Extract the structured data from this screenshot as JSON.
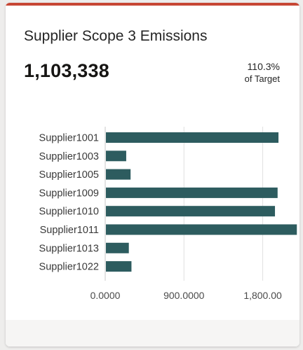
{
  "card": {
    "title": "Supplier Scope 3 Emissions",
    "kpi_value": "1,103,338",
    "target_percent": "110.3%",
    "target_label": "of Target",
    "accent_color": "#c74634"
  },
  "chart_data": {
    "type": "bar",
    "orientation": "horizontal",
    "categories": [
      "Supplier1001",
      "Supplier1003",
      "Supplier1005",
      "Supplier1009",
      "Supplier1010",
      "Supplier1011",
      "Supplier1013",
      "Supplier1022"
    ],
    "values": [
      1980,
      240,
      290,
      1970,
      1940,
      2190,
      270,
      300
    ],
    "xlim": [
      0,
      2100
    ],
    "x_ticks": [
      0,
      900,
      1800
    ],
    "x_tick_labels": [
      "0.0000",
      "900.0000",
      "1,800.00"
    ],
    "bar_color": "#2d5c5f",
    "grid": true,
    "grid_color": "#e0e0e0"
  }
}
